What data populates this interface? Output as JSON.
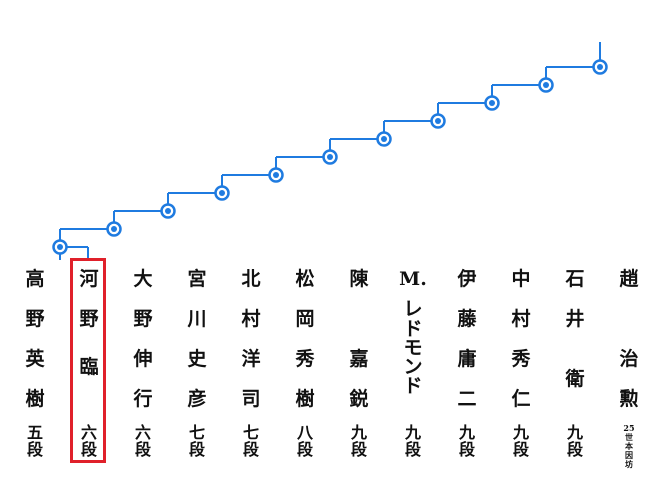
{
  "colors": {
    "bracket": "#1f7be0",
    "node_fill": "#ffffff",
    "highlight": "#e0202a",
    "text": "#111111"
  },
  "bracket": {
    "node_count": 11,
    "node_icon": "circle-node-icon"
  },
  "players": [
    {
      "name": [
        "高",
        "野",
        "英",
        "樹"
      ],
      "rank": [
        "五",
        "段"
      ]
    },
    {
      "name": [
        "河",
        "野",
        "臨"
      ],
      "rank": [
        "六",
        "段"
      ],
      "highlighted": true
    },
    {
      "name": [
        "大",
        "野",
        "伸",
        "行"
      ],
      "rank": [
        "六",
        "段"
      ]
    },
    {
      "name": [
        "宮",
        "川",
        "史",
        "彦"
      ],
      "rank": [
        "七",
        "段"
      ]
    },
    {
      "name": [
        "北",
        "村",
        "洋",
        "司"
      ],
      "rank": [
        "七",
        "段"
      ]
    },
    {
      "name": [
        "松",
        "岡",
        "秀",
        "樹"
      ],
      "rank": [
        "八",
        "段"
      ]
    },
    {
      "name": [
        "陳",
        "",
        "嘉",
        "鋭"
      ],
      "rank": [
        "九",
        "段"
      ]
    },
    {
      "name": [
        "M.",
        "レ",
        "ド",
        "モ",
        "ン",
        "ド"
      ],
      "rank": [
        "九",
        "段"
      ],
      "vertical": true
    },
    {
      "name": [
        "伊",
        "藤",
        "庸",
        "二"
      ],
      "rank": [
        "九",
        "段"
      ]
    },
    {
      "name": [
        "中",
        "村",
        "秀",
        "仁"
      ],
      "rank": [
        "九",
        "段"
      ]
    },
    {
      "name": [
        "石",
        "井",
        "衛"
      ],
      "rank": [
        "九",
        "段"
      ]
    },
    {
      "name": [
        "趙",
        "",
        "治",
        "勲"
      ],
      "rank": [
        "25",
        "世",
        "本",
        "因",
        "坊"
      ],
      "small_rank": true
    }
  ]
}
